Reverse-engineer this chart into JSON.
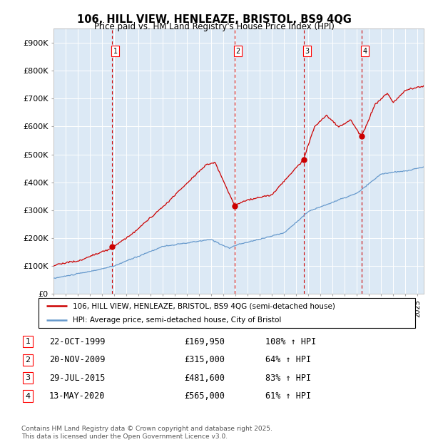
{
  "title": "106, HILL VIEW, HENLEAZE, BRISTOL, BS9 4QG",
  "subtitle": "Price paid vs. HM Land Registry's House Price Index (HPI)",
  "plot_bg_color": "#dce9f5",
  "ylabel_ticks": [
    "£0",
    "£100K",
    "£200K",
    "£300K",
    "£400K",
    "£500K",
    "£600K",
    "£700K",
    "£800K",
    "£900K"
  ],
  "ytick_values": [
    0,
    100000,
    200000,
    300000,
    400000,
    500000,
    600000,
    700000,
    800000,
    900000
  ],
  "ylim": [
    0,
    950000
  ],
  "xlim_start": 1995.0,
  "xlim_end": 2025.5,
  "red_line_color": "#cc0000",
  "blue_line_color": "#6699cc",
  "sale_markers": [
    {
      "label": "1",
      "year": 1999.8,
      "price": 169950
    },
    {
      "label": "2",
      "year": 2009.9,
      "price": 315000
    },
    {
      "label": "3",
      "year": 2015.6,
      "price": 481600
    },
    {
      "label": "4",
      "year": 2020.37,
      "price": 565000
    }
  ],
  "sale_info": [
    {
      "num": "1",
      "date": "22-OCT-1999",
      "price": "£169,950",
      "hpi": "108% ↑ HPI"
    },
    {
      "num": "2",
      "date": "20-NOV-2009",
      "price": "£315,000",
      "hpi": "64% ↑ HPI"
    },
    {
      "num": "3",
      "date": "29-JUL-2015",
      "price": "£481,600",
      "hpi": "83% ↑ HPI"
    },
    {
      "num": "4",
      "date": "13-MAY-2020",
      "price": "£565,000",
      "hpi": "61% ↑ HPI"
    }
  ],
  "legend_red_label": "106, HILL VIEW, HENLEAZE, BRISTOL, BS9 4QG (semi-detached house)",
  "legend_blue_label": "HPI: Average price, semi-detached house, City of Bristol",
  "footer": "Contains HM Land Registry data © Crown copyright and database right 2025.\nThis data is licensed under the Open Government Licence v3.0."
}
